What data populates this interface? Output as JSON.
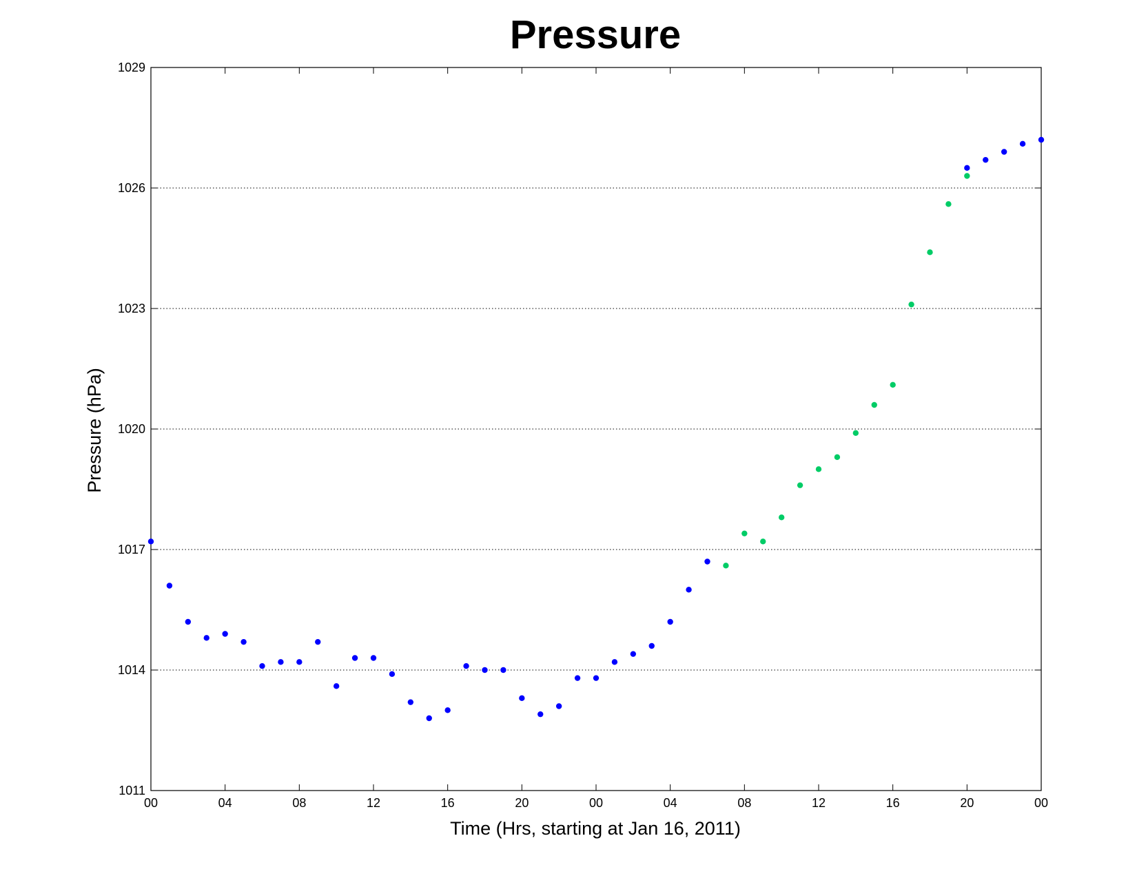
{
  "chart_data": {
    "type": "scatter",
    "title": "Pressure",
    "xlabel": "Time (Hrs, starting at Jan 16, 2011)",
    "ylabel": "Pressure (hPa)",
    "xlim": [
      0,
      48
    ],
    "ylim": [
      1011,
      1029
    ],
    "x_ticks": [
      0,
      4,
      8,
      12,
      16,
      20,
      24,
      28,
      32,
      36,
      40,
      44,
      48
    ],
    "x_tick_labels": [
      "00",
      "04",
      "08",
      "12",
      "16",
      "20",
      "00",
      "04",
      "08",
      "12",
      "16",
      "20",
      "00"
    ],
    "y_ticks": [
      1011,
      1014,
      1017,
      1020,
      1023,
      1026,
      1029
    ],
    "y_tick_labels": [
      "1011",
      "1014",
      "1017",
      "1020",
      "1023",
      "1026",
      "1029"
    ],
    "grid": "y-dotted",
    "colors": {
      "blue": "#0000ff",
      "green": "#00cc66"
    },
    "series": [
      {
        "color": "#0000ff",
        "x": [
          0,
          1,
          2,
          3,
          4,
          5,
          6,
          7,
          8,
          9,
          10,
          11,
          12,
          13,
          14,
          15,
          16,
          17,
          18,
          19,
          20,
          21,
          22,
          23,
          24,
          25,
          26,
          27,
          28,
          29,
          30,
          44,
          45,
          46,
          47,
          48
        ],
        "y": [
          1017.2,
          1016.1,
          1015.2,
          1014.8,
          1014.9,
          1014.7,
          1014.1,
          1014.2,
          1014.2,
          1014.7,
          1013.6,
          1014.3,
          1014.3,
          1013.9,
          1013.2,
          1012.8,
          1013.0,
          1014.1,
          1014.0,
          1014.0,
          1013.3,
          1012.9,
          1013.1,
          1013.8,
          1013.8,
          1014.2,
          1014.4,
          1014.6,
          1015.2,
          1016.0,
          1016.7,
          1026.5,
          1026.7,
          1026.9,
          1027.1,
          1027.2
        ]
      },
      {
        "color": "#00cc66",
        "x": [
          31,
          32,
          33,
          34,
          35,
          36,
          37,
          38,
          39,
          40,
          41,
          42,
          43,
          44
        ],
        "y": [
          1016.6,
          1017.4,
          1017.2,
          1017.8,
          1018.6,
          1019.0,
          1019.3,
          1019.9,
          1020.6,
          1021.1,
          1023.1,
          1024.4,
          1025.6,
          1026.3
        ]
      }
    ]
  }
}
